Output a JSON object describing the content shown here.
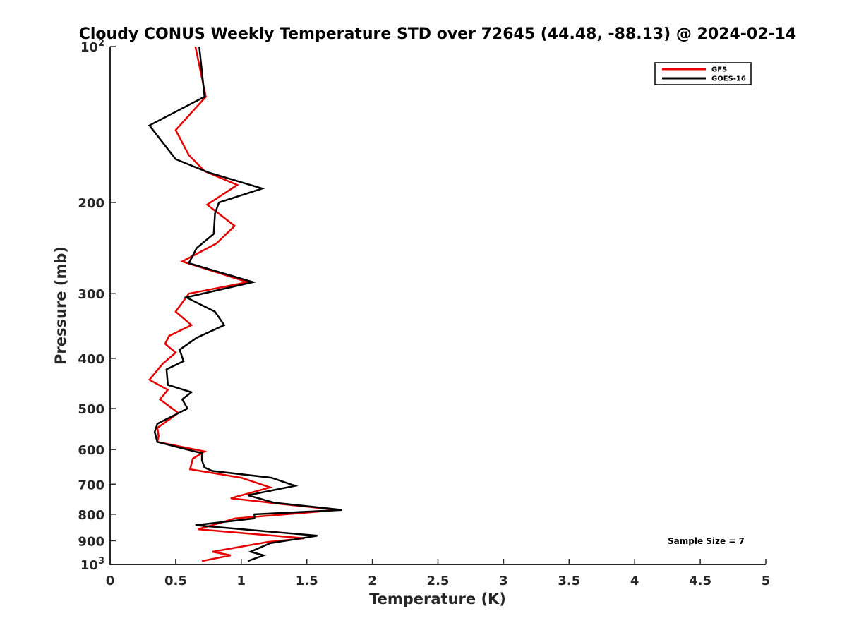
{
  "chart_data": {
    "type": "line",
    "title": "Cloudy CONUS Weekly Temperature STD over 72645 (44.48, -88.13) @ 2024-02-14",
    "xlabel": "Temperature (K)",
    "ylabel": "Pressure (mb)",
    "xlim": [
      0,
      5
    ],
    "ylim": [
      100,
      1000
    ],
    "yscale": "log",
    "y_reversed": true,
    "grid": false,
    "legend_position": "top-right",
    "x_ticks": [
      "0",
      "0.5",
      "1",
      "1.5",
      "2",
      "2.5",
      "3",
      "3.5",
      "4",
      "4.5",
      "5"
    ],
    "y_ticks": [
      {
        "value": 100,
        "base": "10",
        "exp": "2"
      },
      {
        "value": 200,
        "label": "200"
      },
      {
        "value": 300,
        "label": "300"
      },
      {
        "value": 400,
        "label": "400"
      },
      {
        "value": 500,
        "label": "500"
      },
      {
        "value": 600,
        "label": "600"
      },
      {
        "value": 700,
        "label": "700"
      },
      {
        "value": 800,
        "label": "800"
      },
      {
        "value": 900,
        "label": "900"
      },
      {
        "value": 1000,
        "base": "10",
        "exp": "3"
      }
    ],
    "annotation": "Sample Size = 7",
    "series": [
      {
        "name": "GFS",
        "color": "#e60000",
        "points": [
          [
            0.65,
            100
          ],
          [
            0.73,
            125
          ],
          [
            0.5,
            145
          ],
          [
            0.6,
            162
          ],
          [
            0.72,
            174
          ],
          [
            0.97,
            185
          ],
          [
            0.74,
            202
          ],
          [
            0.95,
            222
          ],
          [
            0.81,
            240
          ],
          [
            0.55,
            260
          ],
          [
            1.05,
            285
          ],
          [
            0.6,
            300
          ],
          [
            0.5,
            325
          ],
          [
            0.62,
            345
          ],
          [
            0.45,
            362
          ],
          [
            0.42,
            375
          ],
          [
            0.5,
            390
          ],
          [
            0.4,
            410
          ],
          [
            0.3,
            440
          ],
          [
            0.44,
            460
          ],
          [
            0.38,
            480
          ],
          [
            0.52,
            510
          ],
          [
            0.36,
            545
          ],
          [
            0.37,
            565
          ],
          [
            0.36,
            580
          ],
          [
            0.72,
            605
          ],
          [
            0.63,
            625
          ],
          [
            0.61,
            655
          ],
          [
            1.0,
            680
          ],
          [
            1.22,
            710
          ],
          [
            0.92,
            745
          ],
          [
            1.32,
            765
          ],
          [
            1.74,
            785
          ],
          [
            0.95,
            815
          ],
          [
            0.85,
            830
          ],
          [
            0.67,
            855
          ],
          [
            1.48,
            890
          ],
          [
            1.2,
            905
          ],
          [
            0.78,
            945
          ],
          [
            0.92,
            960
          ],
          [
            0.7,
            985
          ]
        ]
      },
      {
        "name": "GOES-16",
        "color": "#000000",
        "points": [
          [
            0.68,
            100
          ],
          [
            0.72,
            125
          ],
          [
            0.3,
            142
          ],
          [
            0.5,
            165
          ],
          [
            0.75,
            175
          ],
          [
            1.16,
            188
          ],
          [
            0.83,
            200
          ],
          [
            0.8,
            210
          ],
          [
            0.79,
            230
          ],
          [
            0.66,
            245
          ],
          [
            0.6,
            262
          ],
          [
            1.09,
            285
          ],
          [
            0.58,
            305
          ],
          [
            0.8,
            325
          ],
          [
            0.87,
            345
          ],
          [
            0.66,
            365
          ],
          [
            0.53,
            385
          ],
          [
            0.56,
            405
          ],
          [
            0.43,
            420
          ],
          [
            0.44,
            450
          ],
          [
            0.62,
            465
          ],
          [
            0.55,
            480
          ],
          [
            0.59,
            500
          ],
          [
            0.36,
            535
          ],
          [
            0.34,
            555
          ],
          [
            0.36,
            580
          ],
          [
            0.7,
            610
          ],
          [
            0.7,
            630
          ],
          [
            0.72,
            650
          ],
          [
            0.78,
            660
          ],
          [
            1.23,
            680
          ],
          [
            1.41,
            705
          ],
          [
            1.05,
            735
          ],
          [
            1.25,
            760
          ],
          [
            1.77,
            785
          ],
          [
            1.1,
            800
          ],
          [
            1.1,
            815
          ],
          [
            0.65,
            840
          ],
          [
            1.58,
            880
          ],
          [
            1.22,
            910
          ],
          [
            1.07,
            945
          ],
          [
            1.17,
            960
          ],
          [
            1.05,
            985
          ]
        ]
      }
    ]
  }
}
